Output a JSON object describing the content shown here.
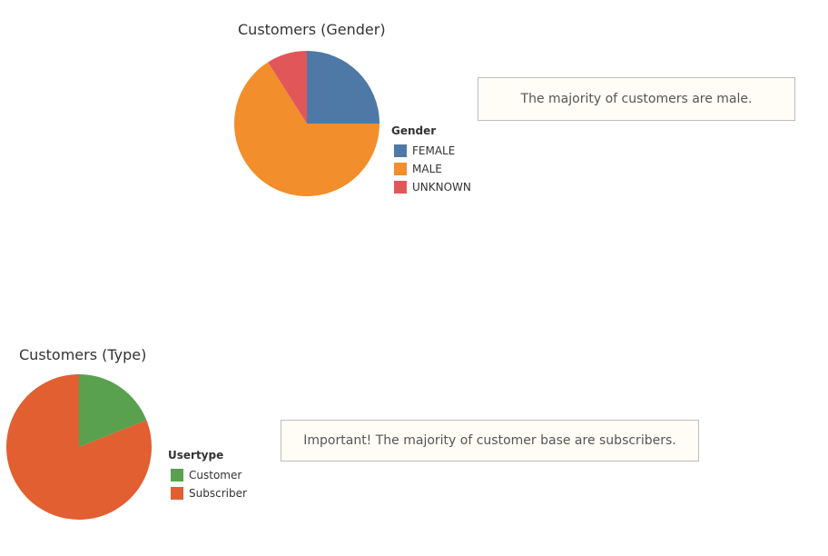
{
  "chart_data": [
    {
      "type": "pie",
      "title": "Customers (Gender)",
      "legend_title": "Gender",
      "legend_position": "right",
      "categories": [
        "FEMALE",
        "MALE",
        "UNKNOWN"
      ],
      "values": [
        25,
        66,
        9
      ],
      "colors": [
        "#4e79a7",
        "#f28e2b",
        "#e15759"
      ],
      "annotation": "The majority of customers are male."
    },
    {
      "type": "pie",
      "title": "Customers (Type)",
      "legend_title": "Usertype",
      "legend_position": "right",
      "categories": [
        "Customer",
        "Subscriber"
      ],
      "values": [
        19,
        81
      ],
      "colors": [
        "#59a14f",
        "#e15f30"
      ],
      "annotation": "Important! The majority of customer base are subscribers."
    }
  ]
}
